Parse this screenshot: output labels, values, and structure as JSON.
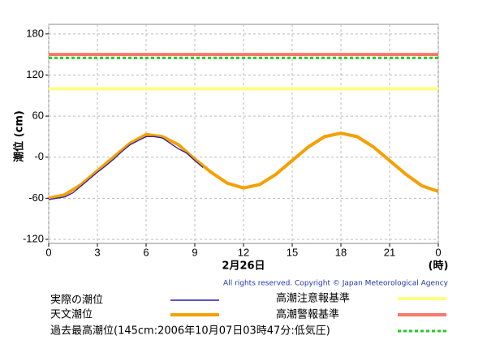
{
  "chart_data": {
    "type": "line",
    "ylabel": "潮位 (cm)",
    "xlabel": "2月26日",
    "xunit": "(時)",
    "copyright": "All rights reserved. Copyright © Japan Meteorological Agency",
    "xlim": [
      0,
      24
    ],
    "xticks": [
      0,
      3,
      6,
      9,
      12,
      15,
      18,
      21,
      {
        "value": 24,
        "label": "0"
      }
    ],
    "ylim": [
      -126,
      194
    ],
    "yticks": [
      180,
      120,
      60,
      {
        "value": 0,
        "label": "-0"
      },
      -60,
      -120
    ],
    "grid": true,
    "series": [
      {
        "name": "実際の潮位",
        "color": "#2a1fb0",
        "x": [
          0,
          0.5,
          1,
          1.5,
          2,
          2.5,
          3,
          3.5,
          4,
          4.5,
          5,
          5.5,
          6,
          6.5,
          7,
          7.5,
          8,
          8.5,
          9,
          9.5
        ],
        "values": [
          -62,
          -60,
          -58,
          -52,
          -42,
          -32,
          -22,
          -13,
          -3,
          8,
          18,
          24,
          30,
          30,
          28,
          20,
          12,
          6,
          -5,
          -15
        ]
      },
      {
        "name": "天文潮位",
        "color": "#f5a000",
        "x": [
          0,
          1,
          2,
          3,
          4,
          5,
          6,
          7,
          8,
          9,
          10,
          11,
          12,
          13,
          14,
          15,
          16,
          17,
          18,
          19,
          20,
          21,
          22,
          23,
          24
        ],
        "values": [
          -60,
          -55,
          -40,
          -20,
          0,
          20,
          33,
          30,
          18,
          -3,
          -22,
          -38,
          -45,
          -40,
          -25,
          -5,
          15,
          30,
          35,
          30,
          15,
          -5,
          -25,
          -42,
          -50
        ]
      }
    ],
    "reference_lines": [
      {
        "name": "過去最高潮位(145cm:2006年10月07日03時47分:低気圧)",
        "color": "#22cc22",
        "value": 145,
        "dashed": true
      },
      {
        "name": "高潮注意報基準",
        "color": "#ffff80",
        "value": 100,
        "dashed": false
      },
      {
        "name": "高潮警報基準",
        "color": "#f5786a",
        "value": 150,
        "dashed": false
      }
    ]
  }
}
